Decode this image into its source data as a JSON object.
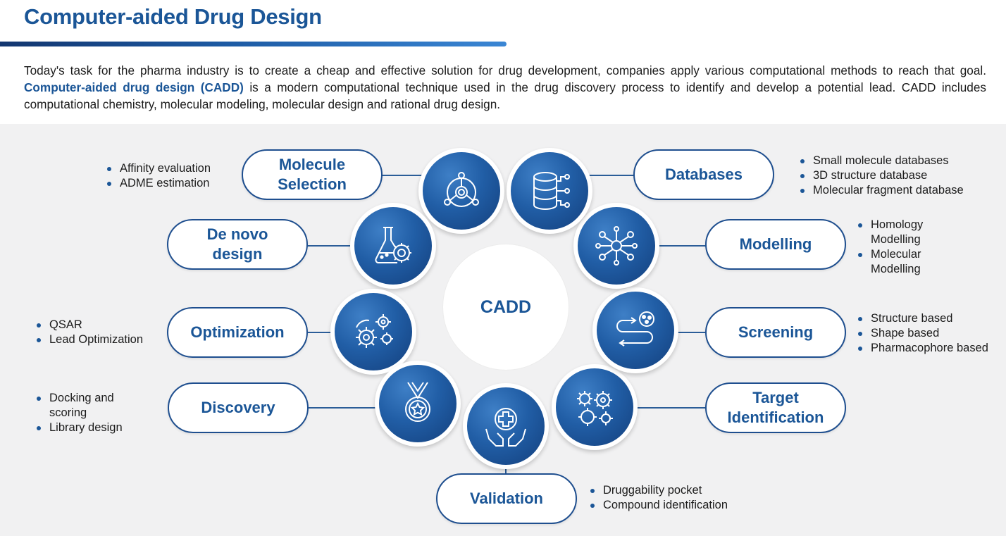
{
  "title": "Computer-aided Drug Design",
  "intro": {
    "part1": "Today's task for the pharma industry is to create a cheap and effective solution for drug development, companies apply various computational methods to reach that goal. ",
    "highlight": "Computer-aided drug design (CADD)",
    "part2": " is a modern computational technique used in the drug discovery process to identify and develop a potential lead. CADD includes computational chemistry, molecular modeling, molecular design and rational drug design."
  },
  "center_label": "CADD",
  "nodes": {
    "molecule_selection": {
      "label_line1": "Molecule",
      "label_line2": "Selection",
      "icon": "molecule-icon",
      "bullets": [
        "Affinity evaluation",
        "ADME estimation"
      ]
    },
    "de_novo": {
      "label_line1": "De novo",
      "label_line2": "design",
      "icon": "flask-virus-icon"
    },
    "optimization": {
      "label": "Optimization",
      "icon": "gears-icon",
      "bullets": [
        "QSAR",
        "Lead Optimization"
      ]
    },
    "discovery": {
      "label": "Discovery",
      "icon": "medal-icon",
      "bullets": [
        "Docking and scoring",
        "Library design"
      ]
    },
    "validation": {
      "label": "Validation",
      "icon": "hands-plus-icon",
      "bullets": [
        "Druggability pocket",
        "Compound identification"
      ]
    },
    "target_identification": {
      "label_line1": "Target",
      "label_line2": "Identification",
      "icon": "viruses-icon"
    },
    "screening": {
      "label": "Screening",
      "icon": "pathway-icon",
      "bullets": [
        "Structure based",
        "Shape based",
        "Pharmacophore based"
      ]
    },
    "modelling": {
      "label": "Modelling",
      "icon": "network-icon",
      "bullets": [
        "Homology Modelling",
        "Molecular Modelling"
      ]
    },
    "databases": {
      "label": "Databases",
      "icon": "database-icon",
      "bullets": [
        "Small molecule databases",
        "3D structure database",
        "Molecular fragment database"
      ]
    }
  },
  "colors": {
    "primary": "#1b5697",
    "dark": "#133f7c",
    "background": "#f1f1f2"
  }
}
